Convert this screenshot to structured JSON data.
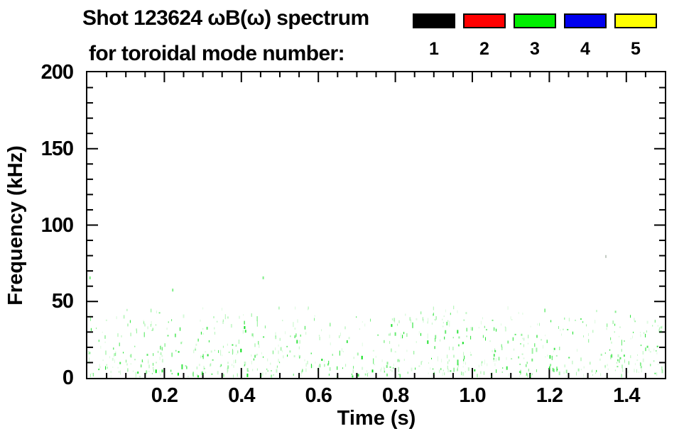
{
  "title": {
    "line1": "Shot 123624 ωB(ω) spectrum",
    "line2": "for toroidal mode number:"
  },
  "legend": {
    "meaning": "toroidal mode number",
    "items": [
      {
        "label": "1",
        "color": "#000000"
      },
      {
        "label": "2",
        "color": "#ff0000"
      },
      {
        "label": "3",
        "color": "#00ee00"
      },
      {
        "label": "4",
        "color": "#0000ee"
      },
      {
        "label": "5",
        "color": "#ffff00"
      }
    ]
  },
  "chart_data": {
    "type": "scatter",
    "subtype": "magnetic-fluctuation spectrogram (sparse speckle points)",
    "title": "Shot 123624 ωB(ω) spectrum for toroidal mode number:",
    "shot_number": "123624",
    "xlabel": "Time (s)",
    "ylabel": "Frequency (kHz)",
    "xlim": [
      0,
      1.5
    ],
    "ylim": [
      0,
      200
    ],
    "x_major_ticks": [
      0.2,
      0.4,
      0.6,
      0.8,
      1.0,
      1.2,
      1.4
    ],
    "x_tick_labels": [
      "0.2",
      "0.4",
      "0.6",
      "0.8",
      "1.0",
      "1.2",
      "1.4"
    ],
    "x_minor_step": 0.05,
    "y_major_ticks": [
      0,
      50,
      100,
      150,
      200
    ],
    "y_tick_labels": [
      "0",
      "50",
      "100",
      "150",
      "200"
    ],
    "y_minor_step": 10,
    "grid": false,
    "ticks": "inward, mirrored on all four sides",
    "plot_bg": "#ffffff",
    "axis_color": "#000000",
    "legend_position": "top-right, outside plot",
    "series": [
      {
        "name": "n=1",
        "color": "#000000",
        "points": []
      },
      {
        "name": "n=2",
        "color": "#ff0000",
        "points": []
      },
      {
        "name": "n=3",
        "color": "#00dd11",
        "style": "speckle",
        "description": "sparse broadband low-frequency activity below ~45 kHz across the whole shot (0–1.5 s); densest below ~16 kHz with a secondary band near 28–38 kHz",
        "seed": 20,
        "noise_bands": [
          {
            "f_min": 0,
            "f_max": 7,
            "count": 210
          },
          {
            "f_min": 7,
            "f_max": 16,
            "count": 185
          },
          {
            "f_min": 16,
            "f_max": 28,
            "count": 165
          },
          {
            "f_min": 28,
            "f_max": 38,
            "count": 135
          },
          {
            "f_min": 38,
            "f_max": 45,
            "count": 45
          }
        ],
        "isolated_points": [
          {
            "t": 0.005,
            "f": 65,
            "opacity": 0.55
          },
          {
            "t": 0.22,
            "f": 57,
            "opacity": 0.5
          },
          {
            "t": 0.455,
            "f": 65,
            "opacity": 0.5
          },
          {
            "t": 1.345,
            "f": 79,
            "opacity": 0.45,
            "color": "#7a8f7a"
          }
        ]
      },
      {
        "name": "n=4",
        "color": "#0000ee",
        "points": []
      },
      {
        "name": "n=5",
        "color": "#ffff00",
        "points": []
      }
    ]
  }
}
